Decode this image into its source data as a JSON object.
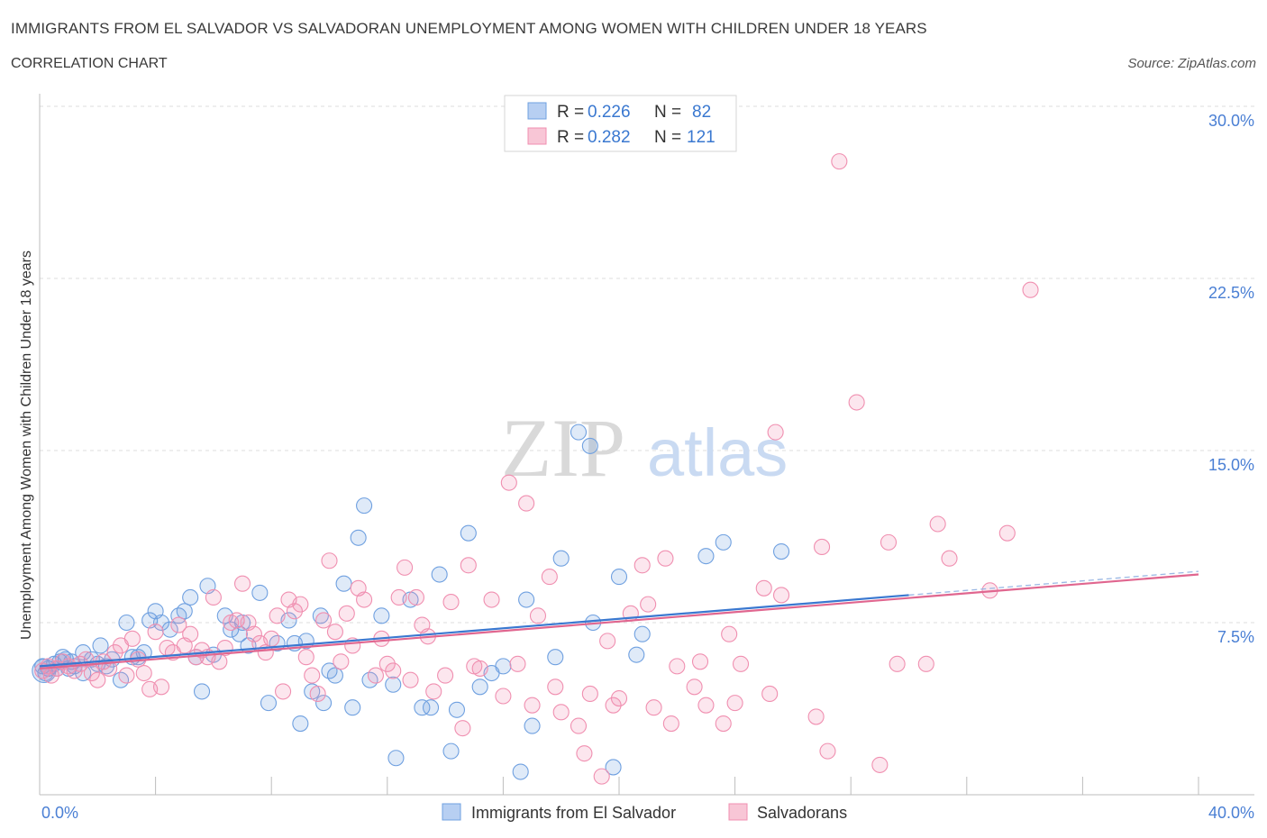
{
  "header": {
    "title": "IMMIGRANTS FROM EL SALVADOR VS SALVADORAN UNEMPLOYMENT AMONG WOMEN WITH CHILDREN UNDER 18 YEARS",
    "subtitle": "CORRELATION CHART",
    "source": "Source: ZipAtlas.com"
  },
  "watermark": {
    "zip": "ZIP",
    "atlas": "atlas"
  },
  "legend_top": {
    "rows": [
      {
        "r_label": "R =",
        "r_value": "0.226",
        "n_label": "N =",
        "n_value": "82"
      },
      {
        "r_label": "R =",
        "r_value": "0.282",
        "n_label": "N =",
        "n_value": "121"
      }
    ]
  },
  "chart_data": {
    "type": "scatter",
    "title": "IMMIGRANTS FROM EL SALVADOR VS SALVADORAN UNEMPLOYMENT AMONG WOMEN WITH CHILDREN UNDER 18 YEARS",
    "xlabel": "",
    "ylabel": "Unemployment Among Women with Children Under 18 years",
    "xlim": [
      0,
      40
    ],
    "ylim": [
      0,
      30
    ],
    "x_tick_labels": [
      "0.0%",
      "40.0%"
    ],
    "y_ticks": [
      7.5,
      15.0,
      22.5,
      30.0
    ],
    "y_tick_labels": [
      "7.5%",
      "15.0%",
      "22.5%",
      "30.0%"
    ],
    "grid": true,
    "legend_position": "top-center and bottom",
    "colors": {
      "blue": "#6fa0e0",
      "blue_line": "#3a78d0",
      "pink": "#f08fb0",
      "pink_line": "#e0668f",
      "tick_label": "#4a7fd4"
    },
    "series": [
      {
        "name": "Immigrants from El Salvador",
        "color": "#6fa0e0",
        "r": 0.226,
        "n": 82,
        "trend": {
          "x": [
            0,
            30
          ],
          "y": [
            5.6,
            8.7
          ]
        },
        "points": [
          [
            0.1,
            5.6
          ],
          [
            0.2,
            5.3
          ],
          [
            0.3,
            5.5
          ],
          [
            0.5,
            5.7
          ],
          [
            0.6,
            5.5
          ],
          [
            0.7,
            5.8
          ],
          [
            0.8,
            6.0
          ],
          [
            0.9,
            5.9
          ],
          [
            1.0,
            5.5
          ],
          [
            1.1,
            5.8
          ],
          [
            1.2,
            5.6
          ],
          [
            1.5,
            5.3
          ],
          [
            1.5,
            6.2
          ],
          [
            1.8,
            5.9
          ],
          [
            2.0,
            5.7
          ],
          [
            2.1,
            6.5
          ],
          [
            2.3,
            5.6
          ],
          [
            2.5,
            5.9
          ],
          [
            2.8,
            5.0
          ],
          [
            3.0,
            7.5
          ],
          [
            3.2,
            6.0
          ],
          [
            3.4,
            6.0
          ],
          [
            3.6,
            6.2
          ],
          [
            3.8,
            7.6
          ],
          [
            4.0,
            8.0
          ],
          [
            4.2,
            7.5
          ],
          [
            4.5,
            7.2
          ],
          [
            4.8,
            7.8
          ],
          [
            5.0,
            8.0
          ],
          [
            5.2,
            8.6
          ],
          [
            5.4,
            6.0
          ],
          [
            5.6,
            4.5
          ],
          [
            5.8,
            9.1
          ],
          [
            6.0,
            6.1
          ],
          [
            6.4,
            7.8
          ],
          [
            6.6,
            7.2
          ],
          [
            6.9,
            7.0
          ],
          [
            7.0,
            7.5
          ],
          [
            7.2,
            6.5
          ],
          [
            7.6,
            8.8
          ],
          [
            7.9,
            4.0
          ],
          [
            8.2,
            6.6
          ],
          [
            8.6,
            7.6
          ],
          [
            8.8,
            6.6
          ],
          [
            9.0,
            3.1
          ],
          [
            9.2,
            6.7
          ],
          [
            9.4,
            4.5
          ],
          [
            9.7,
            7.8
          ],
          [
            9.8,
            4.0
          ],
          [
            10.0,
            5.4
          ],
          [
            10.2,
            5.2
          ],
          [
            10.5,
            9.2
          ],
          [
            10.8,
            3.8
          ],
          [
            11.0,
            11.2
          ],
          [
            11.2,
            12.6
          ],
          [
            11.4,
            5.0
          ],
          [
            11.8,
            7.8
          ],
          [
            12.2,
            4.8
          ],
          [
            12.3,
            1.6
          ],
          [
            12.8,
            8.5
          ],
          [
            13.2,
            3.8
          ],
          [
            13.5,
            3.8
          ],
          [
            13.8,
            9.6
          ],
          [
            14.2,
            1.9
          ],
          [
            14.4,
            3.7
          ],
          [
            14.8,
            11.4
          ],
          [
            15.2,
            4.7
          ],
          [
            15.6,
            5.3
          ],
          [
            16.0,
            5.6
          ],
          [
            16.6,
            1.0
          ],
          [
            16.8,
            8.5
          ],
          [
            17.0,
            3.0
          ],
          [
            17.8,
            6.0
          ],
          [
            18.0,
            10.3
          ],
          [
            18.6,
            15.8
          ],
          [
            19.0,
            15.2
          ],
          [
            19.1,
            7.5
          ],
          [
            19.8,
            1.2
          ],
          [
            20.0,
            9.5
          ],
          [
            20.6,
            6.1
          ],
          [
            20.8,
            7.0
          ],
          [
            23.0,
            10.4
          ],
          [
            23.6,
            11.0
          ],
          [
            25.6,
            10.6
          ]
        ]
      },
      {
        "name": "Salvadorans",
        "color": "#f08fb0",
        "r": 0.282,
        "n": 121,
        "trend": {
          "x": [
            0,
            40
          ],
          "y": [
            5.5,
            9.6
          ]
        },
        "points": [
          [
            0.1,
            5.4
          ],
          [
            0.3,
            5.6
          ],
          [
            0.4,
            5.2
          ],
          [
            0.6,
            5.5
          ],
          [
            0.8,
            5.8
          ],
          [
            1.0,
            5.6
          ],
          [
            1.2,
            5.4
          ],
          [
            1.4,
            5.7
          ],
          [
            1.6,
            5.9
          ],
          [
            1.8,
            5.3
          ],
          [
            2.0,
            5.0
          ],
          [
            2.2,
            5.8
          ],
          [
            2.4,
            5.5
          ],
          [
            2.6,
            6.2
          ],
          [
            2.8,
            6.5
          ],
          [
            3.0,
            5.2
          ],
          [
            3.2,
            6.8
          ],
          [
            3.4,
            5.9
          ],
          [
            3.6,
            5.3
          ],
          [
            3.8,
            4.6
          ],
          [
            4.0,
            7.1
          ],
          [
            4.2,
            4.7
          ],
          [
            4.4,
            6.4
          ],
          [
            4.6,
            6.2
          ],
          [
            4.8,
            7.4
          ],
          [
            5.0,
            6.5
          ],
          [
            5.2,
            7.0
          ],
          [
            5.4,
            6.0
          ],
          [
            5.6,
            6.3
          ],
          [
            5.8,
            6.0
          ],
          [
            6.0,
            8.6
          ],
          [
            6.2,
            5.8
          ],
          [
            6.4,
            6.4
          ],
          [
            6.6,
            7.5
          ],
          [
            6.8,
            7.6
          ],
          [
            7.0,
            9.2
          ],
          [
            7.2,
            7.5
          ],
          [
            7.4,
            7.0
          ],
          [
            7.6,
            6.6
          ],
          [
            7.8,
            6.2
          ],
          [
            8.0,
            6.8
          ],
          [
            8.2,
            7.8
          ],
          [
            8.4,
            4.5
          ],
          [
            8.6,
            8.5
          ],
          [
            8.8,
            8.0
          ],
          [
            9.0,
            8.3
          ],
          [
            9.2,
            6.0
          ],
          [
            9.4,
            5.2
          ],
          [
            9.6,
            4.4
          ],
          [
            9.8,
            7.6
          ],
          [
            10.0,
            10.2
          ],
          [
            10.2,
            7.1
          ],
          [
            10.4,
            5.8
          ],
          [
            10.6,
            7.9
          ],
          [
            10.8,
            6.5
          ],
          [
            11.0,
            9.0
          ],
          [
            11.2,
            8.5
          ],
          [
            11.6,
            5.2
          ],
          [
            11.8,
            6.8
          ],
          [
            12.0,
            5.7
          ],
          [
            12.2,
            5.4
          ],
          [
            12.4,
            8.6
          ],
          [
            12.6,
            9.9
          ],
          [
            12.8,
            5.0
          ],
          [
            13.0,
            8.6
          ],
          [
            13.2,
            7.4
          ],
          [
            13.4,
            6.9
          ],
          [
            13.6,
            4.5
          ],
          [
            14.0,
            5.2
          ],
          [
            14.2,
            8.4
          ],
          [
            14.6,
            2.9
          ],
          [
            14.8,
            10.0
          ],
          [
            15.0,
            5.6
          ],
          [
            15.2,
            5.5
          ],
          [
            15.6,
            8.5
          ],
          [
            16.0,
            4.3
          ],
          [
            16.2,
            13.6
          ],
          [
            16.5,
            5.7
          ],
          [
            16.8,
            12.7
          ],
          [
            17.0,
            3.9
          ],
          [
            17.2,
            7.8
          ],
          [
            17.6,
            9.5
          ],
          [
            17.8,
            4.7
          ],
          [
            18.0,
            3.6
          ],
          [
            18.6,
            3.0
          ],
          [
            18.8,
            1.8
          ],
          [
            19.0,
            4.4
          ],
          [
            19.4,
            0.8
          ],
          [
            19.6,
            6.7
          ],
          [
            19.8,
            3.9
          ],
          [
            20.0,
            4.2
          ],
          [
            20.4,
            7.9
          ],
          [
            20.8,
            10.0
          ],
          [
            21.0,
            8.3
          ],
          [
            21.2,
            3.8
          ],
          [
            21.6,
            10.3
          ],
          [
            21.8,
            3.1
          ],
          [
            22.0,
            5.6
          ],
          [
            22.6,
            4.7
          ],
          [
            22.8,
            5.8
          ],
          [
            23.0,
            3.9
          ],
          [
            23.6,
            3.1
          ],
          [
            23.8,
            7.0
          ],
          [
            24.0,
            4.0
          ],
          [
            24.2,
            5.7
          ],
          [
            25.0,
            9.0
          ],
          [
            25.2,
            4.4
          ],
          [
            25.4,
            15.8
          ],
          [
            25.6,
            8.7
          ],
          [
            26.8,
            3.4
          ],
          [
            27.0,
            10.8
          ],
          [
            27.2,
            1.9
          ],
          [
            27.6,
            27.6
          ],
          [
            28.2,
            17.1
          ],
          [
            29.0,
            1.3
          ],
          [
            29.3,
            11.0
          ],
          [
            29.6,
            5.7
          ],
          [
            30.6,
            5.7
          ],
          [
            31.0,
            11.8
          ],
          [
            31.4,
            10.3
          ],
          [
            32.8,
            8.9
          ],
          [
            33.4,
            11.4
          ],
          [
            34.2,
            22.0
          ]
        ]
      }
    ]
  },
  "legend_bottom": {
    "items": [
      {
        "label": "Immigrants from El Salvador"
      },
      {
        "label": "Salvadorans"
      }
    ]
  }
}
